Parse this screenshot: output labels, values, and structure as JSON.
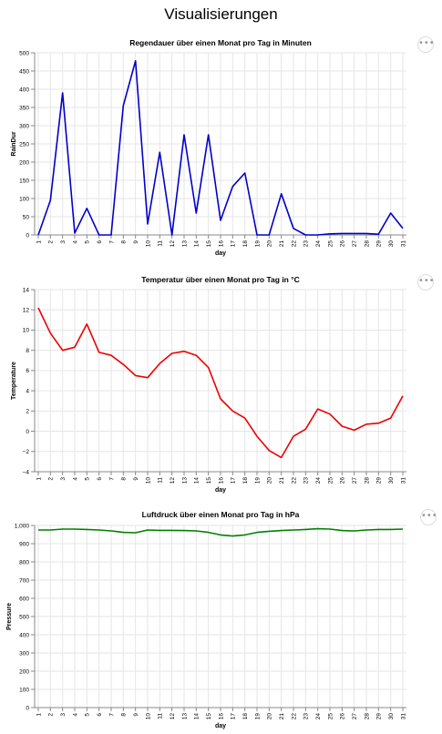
{
  "page": {
    "title": "Visualisierungen",
    "menu_glyph": "•••"
  },
  "chart_data": [
    {
      "type": "line",
      "title": "Regendauer über einen Monat pro Tag in Minuten",
      "xlabel": "day",
      "ylabel": "RainDur",
      "color": "#0000cc",
      "ylim": [
        0,
        500
      ],
      "yticks": [
        0,
        50,
        100,
        150,
        200,
        250,
        300,
        350,
        400,
        450,
        500
      ],
      "ytick_labels": [
        "0",
        "50",
        "100",
        "150",
        "200",
        "250",
        "300",
        "350",
        "400",
        "450",
        "500"
      ],
      "x": [
        "1",
        "2",
        "3",
        "4",
        "5",
        "6",
        "7",
        "8",
        "9",
        "10",
        "11",
        "12",
        "13",
        "14",
        "15",
        "16",
        "17",
        "18",
        "19",
        "20",
        "21",
        "22",
        "23",
        "24",
        "25",
        "26",
        "27",
        "28",
        "29",
        "30",
        "31"
      ],
      "values": [
        0,
        95,
        390,
        5,
        73,
        0,
        0,
        355,
        478,
        30,
        227,
        0,
        275,
        60,
        275,
        40,
        133,
        170,
        0,
        0,
        113,
        18,
        0,
        0,
        3,
        4,
        4,
        4,
        2,
        60,
        18
      ]
    },
    {
      "type": "line",
      "title": "Temperatur über einen Monat pro Tag in °C",
      "xlabel": "day",
      "ylabel": "Temperature",
      "color": "#ee0000",
      "ylim": [
        -4,
        14
      ],
      "yticks": [
        -4,
        -2,
        0,
        2,
        4,
        6,
        8,
        10,
        12,
        14
      ],
      "ytick_labels": [
        "−4",
        "−2",
        "0",
        "2",
        "4",
        "6",
        "8",
        "10",
        "12",
        "14"
      ],
      "x": [
        "1",
        "2",
        "3",
        "4",
        "5",
        "6",
        "7",
        "8",
        "9",
        "10",
        "11",
        "12",
        "13",
        "14",
        "15",
        "16",
        "17",
        "18",
        "19",
        "20",
        "21",
        "22",
        "23",
        "24",
        "25",
        "26",
        "27",
        "28",
        "29",
        "30",
        "31"
      ],
      "values": [
        12.2,
        9.7,
        8.0,
        8.3,
        10.6,
        7.8,
        7.5,
        6.6,
        5.5,
        5.3,
        6.7,
        7.7,
        7.9,
        7.5,
        6.3,
        3.2,
        2.0,
        1.3,
        -0.5,
        -1.9,
        -2.6,
        -0.5,
        0.2,
        2.2,
        1.7,
        0.5,
        0.1,
        0.7,
        0.8,
        1.3,
        3.5
      ]
    },
    {
      "type": "line",
      "title": "Luftdruck über einen Monat pro Tag in hPa",
      "xlabel": "day",
      "ylabel": "Pressure",
      "color": "#008000",
      "ylim": [
        0,
        1000
      ],
      "yticks": [
        0,
        100,
        200,
        300,
        400,
        500,
        600,
        700,
        800,
        900,
        1000
      ],
      "ytick_labels": [
        "0",
        "100",
        "200",
        "300",
        "400",
        "500",
        "600",
        "700",
        "800",
        "900",
        "1,000"
      ],
      "x": [
        "1",
        "2",
        "3",
        "4",
        "5",
        "6",
        "7",
        "8",
        "9",
        "10",
        "11",
        "12",
        "13",
        "14",
        "15",
        "16",
        "17",
        "18",
        "19",
        "20",
        "21",
        "22",
        "23",
        "24",
        "25",
        "26",
        "27",
        "28",
        "29",
        "30",
        "31"
      ],
      "values": [
        975,
        975,
        980,
        980,
        978,
        975,
        970,
        962,
        960,
        975,
        973,
        973,
        972,
        970,
        962,
        948,
        942,
        948,
        962,
        968,
        972,
        975,
        978,
        982,
        980,
        972,
        970,
        975,
        978,
        978,
        980
      ]
    }
  ]
}
